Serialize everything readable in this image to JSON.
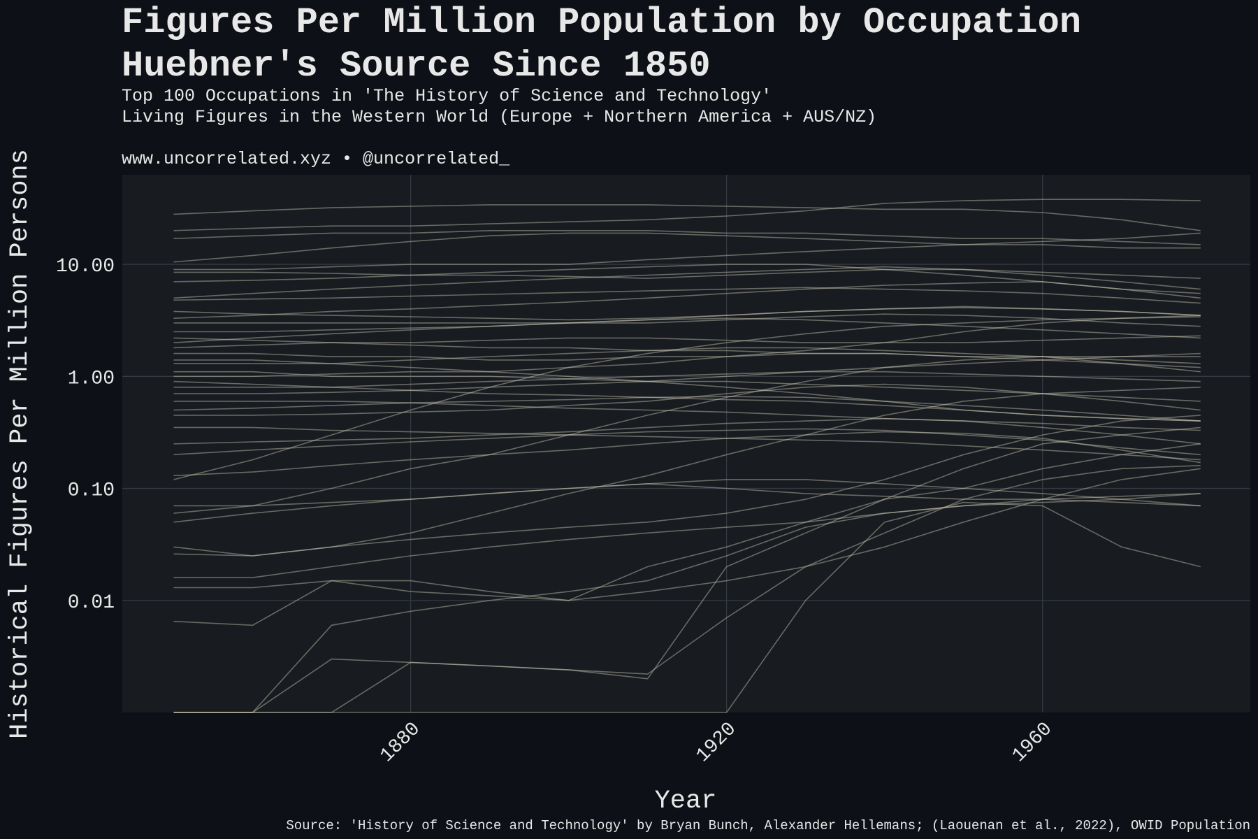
{
  "chart_data": {
    "type": "line",
    "title": [
      "Figures Per Million Population by Occupation",
      "Huebner's Source Since 1850"
    ],
    "subtitle": [
      "Top 100 Occupations in 'The History of Science and Technology'",
      "Living Figures in the Western World (Europe + Northern America + AUS/NZ)"
    ],
    "caption": "www.uncorrelated.xyz • @uncorrelated_",
    "source": "Source: 'History of Science and Technology' by Bryan Bunch, Alexander Hellemans; (Laouenan et al., 2022), OWID Population",
    "x_label": "Year",
    "y_label": "Historical Figures Per Million Persons",
    "color": "#cdc7b4",
    "log_y": true,
    "grid": true,
    "xlim": [
      1843.5,
      1986.3
    ],
    "xticks": [
      1880,
      1920,
      1960
    ],
    "ylim": [
      0.001,
      63
    ],
    "yticks": [
      {
        "value": 0.01,
        "label": "0.01"
      },
      {
        "value": 0.1,
        "label": "0.10"
      },
      {
        "value": 1,
        "label": "1.00"
      },
      {
        "value": 10,
        "label": "10.00"
      }
    ],
    "x": [
      1850,
      1860,
      1870,
      1880,
      1890,
      1900,
      1910,
      1920,
      1930,
      1940,
      1950,
      1960,
      1970,
      1980
    ],
    "series": [
      {
        "values": [
          28,
          30,
          32,
          33,
          34,
          34,
          34,
          33,
          32,
          31,
          31,
          29,
          25,
          20
        ]
      },
      {
        "values": [
          20,
          21,
          22,
          22,
          23,
          24,
          25,
          27,
          30,
          35,
          37,
          38,
          38,
          37
        ]
      },
      {
        "values": [
          17,
          18,
          19,
          19,
          20,
          20,
          20,
          19,
          19,
          18,
          17,
          17,
          16,
          15
        ]
      },
      {
        "values": [
          10.5,
          12,
          14,
          16,
          18,
          19,
          19,
          18,
          17,
          16,
          15,
          15,
          14,
          14
        ]
      },
      {
        "values": [
          9,
          9,
          9.5,
          10,
          10,
          10,
          11,
          12,
          13,
          14,
          15,
          16,
          17,
          19
        ]
      },
      {
        "values": [
          8.5,
          8.5,
          8.3,
          8,
          8,
          7.8,
          7.5,
          8,
          8.5,
          9,
          9,
          8,
          7,
          6
        ]
      },
      {
        "values": [
          7,
          7.2,
          7.5,
          8,
          8.5,
          9,
          9.5,
          10,
          10,
          9,
          8,
          7,
          6,
          5.5
        ]
      },
      {
        "values": [
          4.8,
          4.9,
          5,
          5.2,
          5.4,
          5.6,
          5.8,
          6,
          6.2,
          6,
          5.8,
          5.5,
          5,
          4.5
        ]
      },
      {
        "values": [
          3.3,
          3.5,
          3.8,
          4,
          4.3,
          4.6,
          5,
          5.5,
          6,
          6.5,
          6.8,
          7,
          6,
          5
        ]
      },
      {
        "values": [
          3,
          3,
          3,
          3,
          3,
          3,
          3,
          3.2,
          3.4,
          3.6,
          3.5,
          3.3,
          3,
          2.8
        ]
      },
      {
        "values": [
          2.5,
          2.5,
          2.6,
          2.7,
          2.8,
          3,
          3.2,
          3.5,
          3.8,
          4,
          4.2,
          4,
          3.8,
          3.5
        ]
      },
      {
        "values": [
          2.2,
          2.1,
          2,
          1.9,
          1.8,
          1.8,
          1.7,
          1.7,
          1.6,
          1.6,
          1.5,
          1.5,
          1.4,
          1.3
        ]
      },
      {
        "values": [
          1.8,
          1.9,
          2,
          2,
          2.1,
          2.2,
          2.2,
          2.1,
          2,
          2,
          2,
          2.1,
          2.2,
          2.3
        ]
      },
      {
        "values": [
          1.6,
          1.6,
          1.5,
          1.5,
          1.4,
          1.4,
          1.5,
          1.5,
          1.6,
          1.6,
          1.5,
          1.4,
          1.3,
          1.2
        ]
      },
      {
        "values": [
          1.3,
          1.3,
          1.3,
          1.4,
          1.5,
          1.6,
          1.7,
          1.8,
          1.8,
          1.7,
          1.6,
          1.5,
          1.3,
          1.1
        ]
      },
      {
        "values": [
          1.1,
          1.1,
          1,
          1,
          1,
          0.95,
          0.9,
          0.9,
          0.85,
          0.8,
          0.75,
          0.7,
          0.65,
          0.6
        ]
      },
      {
        "values": [
          1,
          1,
          1.05,
          1.1,
          1.1,
          1.2,
          1.3,
          1.5,
          1.7,
          2,
          2.5,
          3,
          3.3,
          3.5
        ]
      },
      {
        "values": [
          0.8,
          0.8,
          0.8,
          0.85,
          0.9,
          0.95,
          1,
          1.05,
          1.1,
          1.1,
          1.05,
          1,
          0.95,
          0.9
        ]
      },
      {
        "values": [
          0.7,
          0.7,
          0.72,
          0.75,
          0.8,
          0.85,
          0.9,
          1,
          1.1,
          1.2,
          1.3,
          1.4,
          1.5,
          1.6
        ]
      },
      {
        "values": [
          0.6,
          0.6,
          0.6,
          0.58,
          0.55,
          0.52,
          0.5,
          0.48,
          0.45,
          0.42,
          0.4,
          0.38,
          0.35,
          0.33
        ]
      },
      {
        "values": [
          0.5,
          0.52,
          0.55,
          0.58,
          0.6,
          0.62,
          0.65,
          0.66,
          0.65,
          0.6,
          0.55,
          0.5,
          0.45,
          0.4
        ]
      },
      {
        "values": [
          0.45,
          0.45,
          0.46,
          0.48,
          0.5,
          0.55,
          0.6,
          0.7,
          0.8,
          0.85,
          0.8,
          0.7,
          0.6,
          0.5
        ]
      },
      {
        "values": [
          0.35,
          0.35,
          0.33,
          0.32,
          0.31,
          0.3,
          0.29,
          0.28,
          0.27,
          0.26,
          0.24,
          0.22,
          0.2,
          0.18
        ]
      },
      {
        "values": [
          0.25,
          0.26,
          0.27,
          0.28,
          0.3,
          0.32,
          0.35,
          0.38,
          0.4,
          0.42,
          0.4,
          0.35,
          0.3,
          0.25
        ]
      },
      {
        "values": [
          0.2,
          0.22,
          0.24,
          0.26,
          0.28,
          0.3,
          0.32,
          0.33,
          0.34,
          0.33,
          0.3,
          0.27,
          0.23,
          0.2
        ]
      },
      {
        "values": [
          0.12,
          0.18,
          0.3,
          0.5,
          0.8,
          1.2,
          1.6,
          2,
          2.4,
          2.8,
          3,
          3.2,
          3.3,
          3.4
        ]
      },
      {
        "values": [
          0.13,
          0.14,
          0.16,
          0.18,
          0.2,
          0.22,
          0.25,
          0.28,
          0.3,
          0.32,
          0.31,
          0.28,
          0.22,
          0.17
        ]
      },
      {
        "values": [
          0.07,
          0.07,
          0.075,
          0.08,
          0.09,
          0.1,
          0.11,
          0.12,
          0.12,
          0.11,
          0.1,
          0.09,
          0.08,
          0.07
        ]
      },
      {
        "values": [
          0.06,
          0.07,
          0.1,
          0.15,
          0.2,
          0.3,
          0.45,
          0.65,
          0.9,
          1.2,
          1.4,
          1.5,
          1.5,
          1.5
        ]
      },
      {
        "values": [
          0.05,
          0.06,
          0.07,
          0.08,
          0.09,
          0.1,
          0.11,
          0.1,
          0.09,
          0.085,
          0.08,
          0.08,
          0.075,
          0.07
        ]
      },
      {
        "values": [
          0.026,
          0.025,
          0.03,
          0.035,
          0.04,
          0.045,
          0.05,
          0.06,
          0.08,
          0.12,
          0.2,
          0.3,
          0.4,
          0.45
        ]
      },
      {
        "values": [
          0.03,
          0.025,
          0.03,
          0.04,
          0.06,
          0.09,
          0.13,
          0.2,
          0.3,
          0.45,
          0.6,
          0.7,
          0.75,
          0.8
        ]
      },
      {
        "values": [
          0.016,
          0.016,
          0.02,
          0.025,
          0.03,
          0.035,
          0.04,
          0.045,
          0.05,
          0.06,
          0.07,
          0.075,
          0.08,
          0.09
        ]
      },
      {
        "values": [
          0.013,
          0.013,
          0.015,
          0.012,
          0.011,
          0.01,
          0.012,
          0.015,
          0.02,
          0.03,
          0.05,
          0.08,
          0.12,
          0.15
        ]
      },
      {
        "values": [
          0.0065,
          0.006,
          0.015,
          0.015,
          0.012,
          0.01,
          0.02,
          0.03,
          0.05,
          0.08,
          0.1,
          0.15,
          0.2,
          0.25
        ]
      },
      {
        "values": [
          0.001,
          0.001,
          0.006,
          0.008,
          0.01,
          0.012,
          0.015,
          0.025,
          0.045,
          0.06,
          0.07,
          0.08,
          0.085,
          0.09
        ]
      },
      {
        "values": [
          0.001,
          0.001,
          0.003,
          0.0028,
          0.0026,
          0.0024,
          0.0022,
          0.007,
          0.02,
          0.04,
          0.08,
          0.12,
          0.15,
          0.16
        ]
      },
      {
        "values": [
          0.001,
          0.001,
          0.001,
          0.0028,
          0.0026,
          0.0024,
          0.002,
          0.02,
          0.04,
          0.08,
          0.15,
          0.25,
          0.3,
          0.35
        ]
      },
      {
        "values": [
          0.001,
          0.001,
          0.001,
          0.001,
          0.001,
          0.001,
          0.001,
          0.001,
          0.01,
          0.05,
          0.075,
          0.07,
          0.03,
          0.02
        ]
      },
      {
        "values": [
          5,
          5.5,
          6,
          6.5,
          7,
          7.5,
          8,
          8.5,
          9,
          9.5,
          9,
          8.5,
          8,
          7.5
        ]
      },
      {
        "values": [
          2,
          2.2,
          2.4,
          2.6,
          2.8,
          3,
          3.2,
          3.3,
          3.2,
          3,
          2.8,
          2.6,
          2.4,
          2.2
        ]
      },
      {
        "values": [
          1.4,
          1.4,
          1.3,
          1.2,
          1.1,
          1,
          0.9,
          0.8,
          0.7,
          0.6,
          0.5,
          0.45,
          0.42,
          0.4
        ]
      },
      {
        "values": [
          0.9,
          0.85,
          0.8,
          0.75,
          0.7,
          0.68,
          0.65,
          0.62,
          0.6,
          0.55,
          0.5,
          0.45,
          0.42,
          0.4
        ]
      },
      {
        "values": [
          3.8,
          3.6,
          3.5,
          3.4,
          3.3,
          3.2,
          3.3,
          3.5,
          3.8,
          4,
          4.1,
          4,
          3.8,
          3.5
        ]
      }
    ]
  }
}
